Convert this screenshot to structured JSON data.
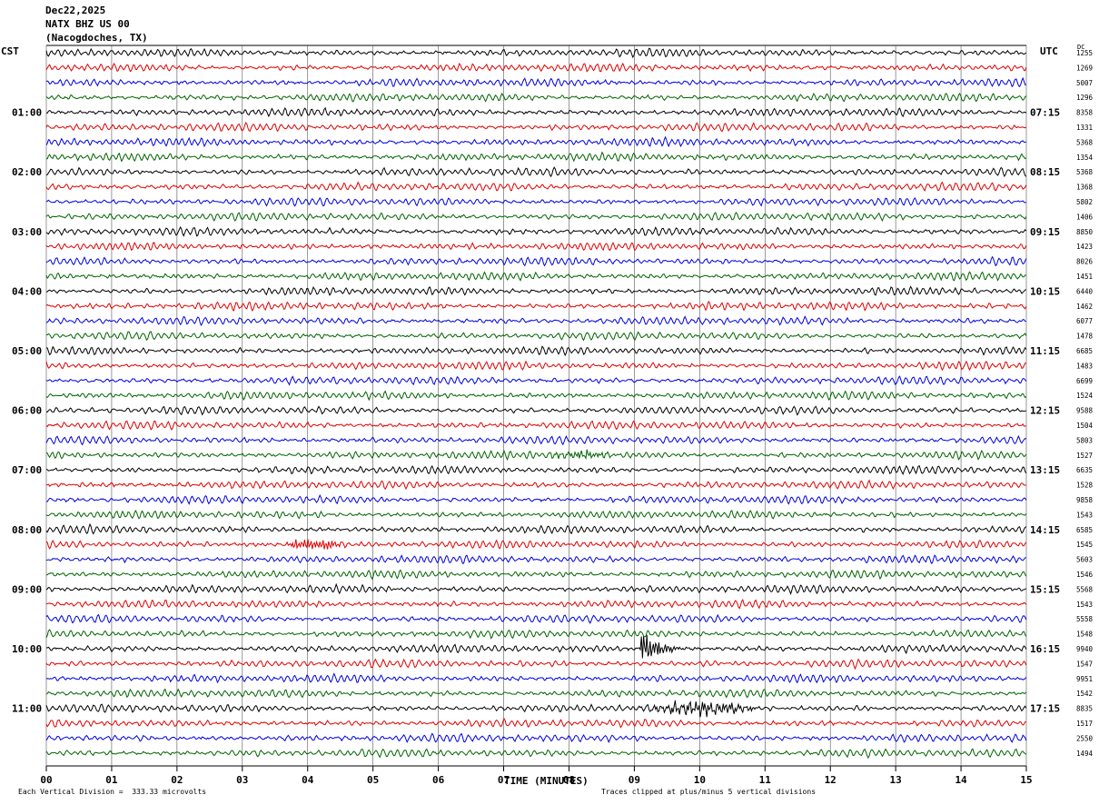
{
  "header": {
    "date": "Dec22,2025",
    "station": "NATX BHZ US 00",
    "location": "(Nacogdoches, TX)"
  },
  "left_tz": "CST",
  "right_tz": "UTC",
  "right_unit": "DC",
  "footer": {
    "division_note": "Each Vertical Division =  333.33 microvolts",
    "clip_note": "Traces clipped at plus/minus 5 vertical divisions"
  },
  "colors": {
    "trace_cycle": [
      "#000000",
      "#e00000",
      "#0000e0",
      "#006400"
    ],
    "grid": "#000000",
    "background": "#ffffff"
  },
  "chart_data": {
    "type": "line",
    "title": "NATX BHZ US 00",
    "xlabel": "TIME (MINUTES)",
    "xlim": [
      0,
      15
    ],
    "x_ticks": [
      "00",
      "01",
      "02",
      "03",
      "04",
      "05",
      "06",
      "07",
      "08",
      "09",
      "10",
      "11",
      "12",
      "13",
      "14",
      "15"
    ],
    "rows_count": 48,
    "row_minutes": 15,
    "left_hour_labels": [
      "01:00",
      "02:00",
      "03:00",
      "04:00",
      "05:00",
      "06:00",
      "07:00",
      "08:00",
      "09:00",
      "10:00",
      "11:00"
    ],
    "right_hour_labels": [
      "07:15",
      "08:15",
      "09:15",
      "10:15",
      "11:15",
      "12:15",
      "13:15",
      "14:15",
      "15:15",
      "16:15",
      "17:15"
    ],
    "row_dc_values": [
      "1255",
      "1269",
      "5007",
      "1296",
      "8358",
      "1331",
      "5368",
      "1354",
      "5368",
      "1368",
      "5802",
      "1406",
      "8850",
      "1423",
      "8026",
      "1451",
      "6440",
      "1462",
      "6077",
      "1478",
      "6685",
      "1483",
      "6699",
      "1524",
      "9588",
      "1504",
      "5803",
      "1527",
      "6635",
      "1528",
      "9858",
      "1543",
      "6585",
      "1545",
      "5603",
      "1546",
      "5568",
      "1543",
      "5558",
      "1548",
      "9940",
      "1547",
      "9951",
      "1542",
      "8835",
      "1517",
      "2550",
      "1494"
    ],
    "events": [
      {
        "row": 40,
        "start_min": 9.1,
        "end_min": 10.0,
        "amplitude": "large"
      },
      {
        "row": 44,
        "start_min": 9.0,
        "end_min": 11.0,
        "amplitude": "medium"
      },
      {
        "row": 33,
        "start_min": 3.6,
        "end_min": 4.6,
        "amplitude": "medium"
      },
      {
        "row": 27,
        "start_min": 7.6,
        "end_min": 8.8,
        "amplitude": "small"
      }
    ]
  }
}
